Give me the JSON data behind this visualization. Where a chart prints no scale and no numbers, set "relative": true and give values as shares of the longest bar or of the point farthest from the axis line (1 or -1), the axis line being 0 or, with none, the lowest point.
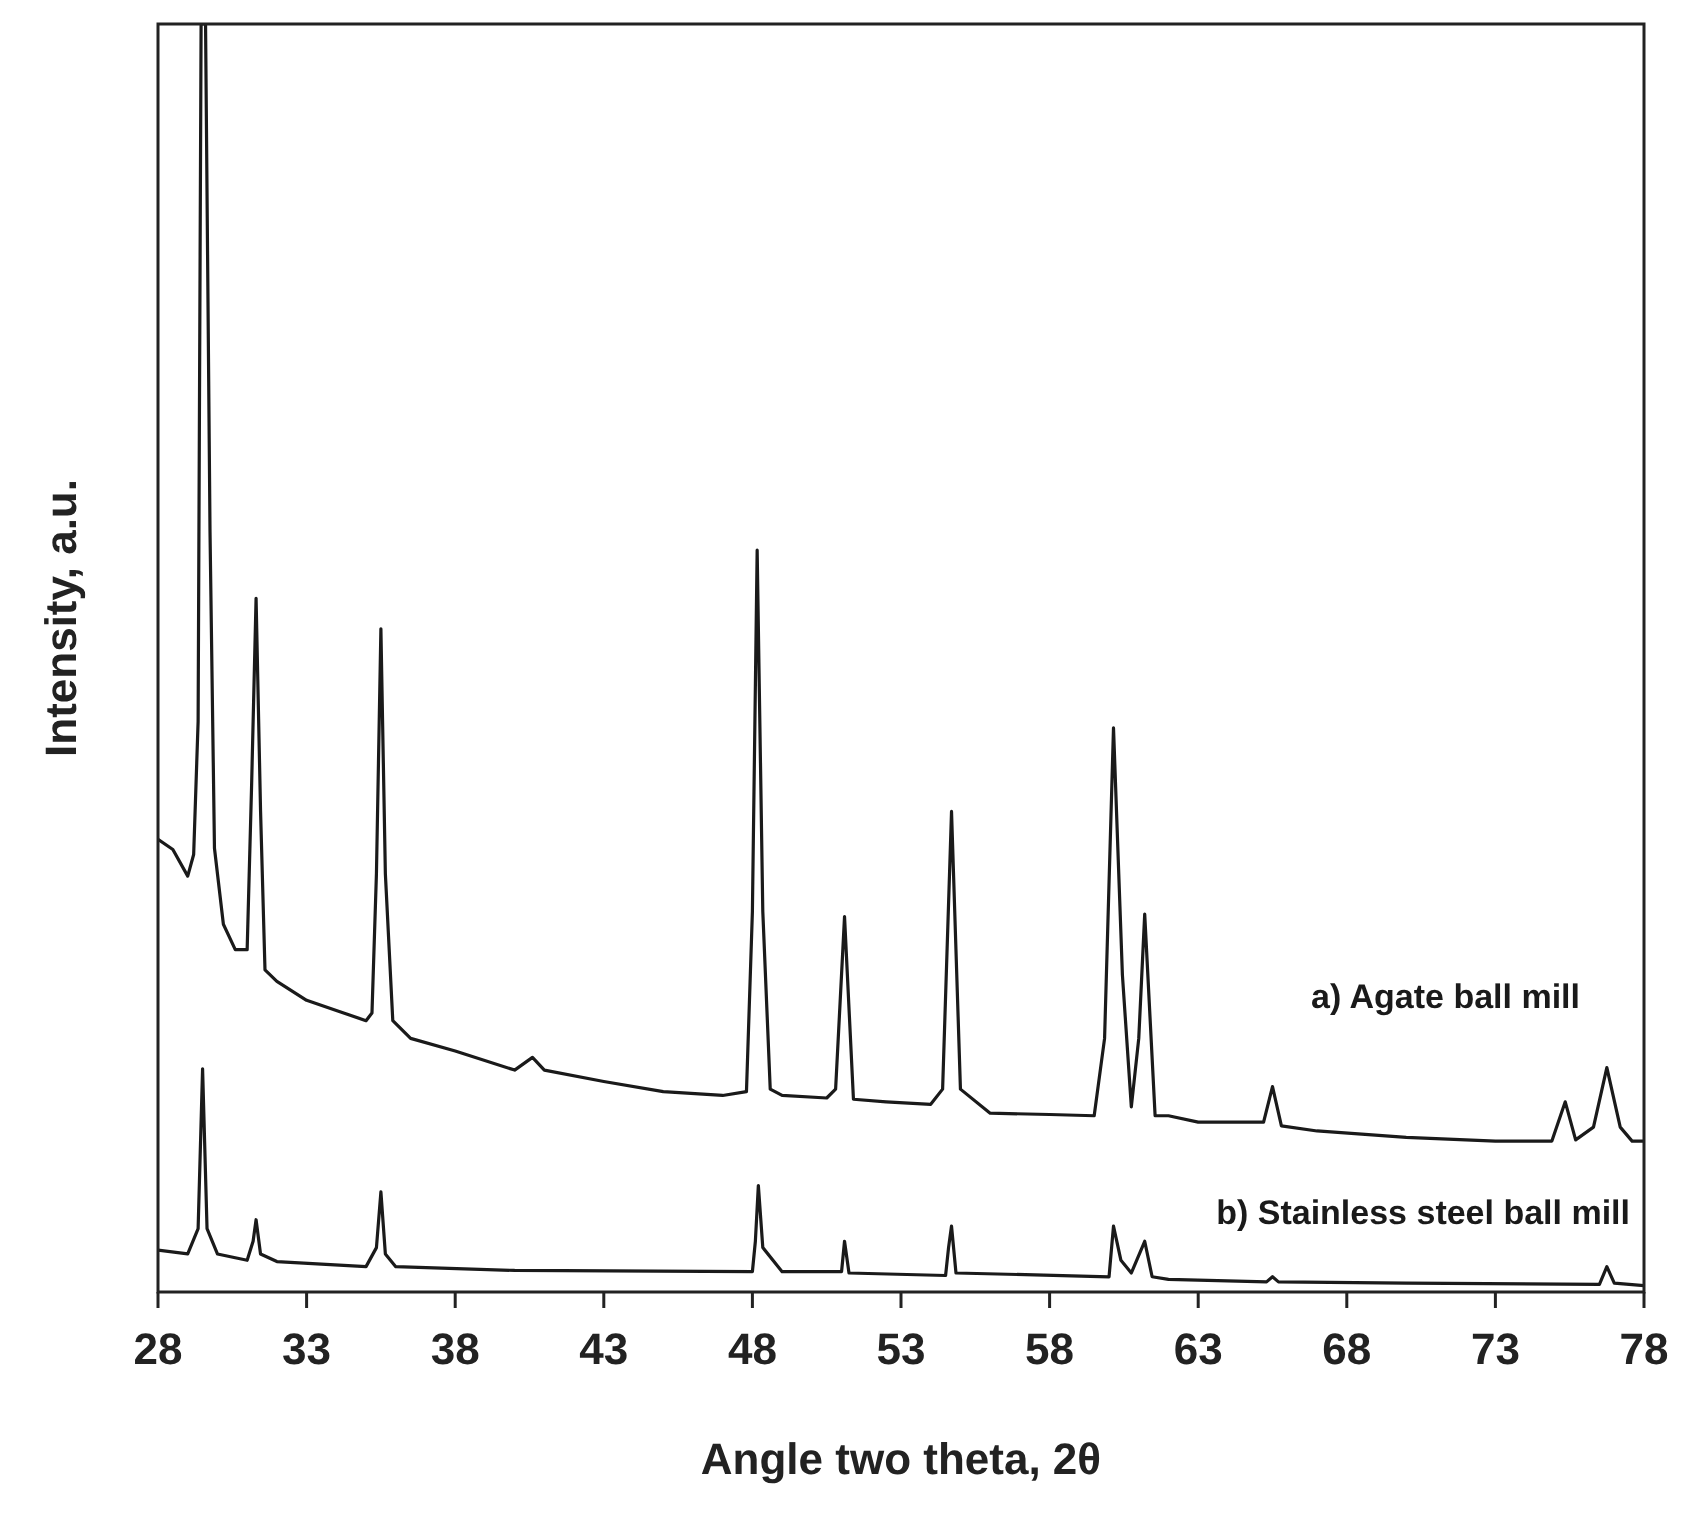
{
  "chart_data": {
    "type": "line",
    "xlabel": "Angle two theta, 2θ",
    "ylabel": "Intensity, a.u.",
    "relative": true,
    "xlim": [
      28,
      78
    ],
    "xticks": [
      28,
      33,
      38,
      43,
      48,
      53,
      58,
      63,
      68,
      73,
      78
    ],
    "grid": false,
    "line_style": "solid",
    "series": [
      {
        "name": "a) Agate ball mill",
        "color": "#1a1a1a",
        "x": [
          28,
          28.5,
          29,
          29.2,
          29.35,
          29.45,
          29.6,
          29.75,
          29.9,
          30.2,
          30.6,
          31.0,
          31.15,
          31.3,
          31.45,
          31.6,
          32,
          33,
          34,
          35,
          35.2,
          35.35,
          35.5,
          35.65,
          35.9,
          36.5,
          38,
          40,
          40.6,
          41,
          43,
          45,
          47,
          47.8,
          48.0,
          48.16,
          48.35,
          48.6,
          49,
          50.5,
          50.8,
          51.1,
          51.4,
          52.5,
          54,
          54.4,
          54.7,
          55.0,
          56,
          58,
          59.5,
          59.85,
          60.15,
          60.45,
          60.75,
          61.0,
          61.2,
          61.55,
          62,
          63,
          65.2,
          65.5,
          65.8,
          67,
          70,
          73,
          74.9,
          75.35,
          75.7,
          76.3,
          76.75,
          77.2,
          77.6,
          78
        ],
        "values": [
          0.357,
          0.349,
          0.328,
          0.345,
          0.45,
          1,
          1,
          0.6,
          0.35,
          0.29,
          0.27,
          0.27,
          0.4,
          0.547,
          0.38,
          0.254,
          0.245,
          0.23,
          0.222,
          0.214,
          0.22,
          0.33,
          0.523,
          0.33,
          0.214,
          0.2,
          0.19,
          0.175,
          0.185,
          0.175,
          0.166,
          0.158,
          0.155,
          0.158,
          0.3,
          0.585,
          0.3,
          0.16,
          0.155,
          0.153,
          0.16,
          0.296,
          0.152,
          0.15,
          0.148,
          0.16,
          0.379,
          0.16,
          0.141,
          0.14,
          0.139,
          0.2,
          0.445,
          0.25,
          0.146,
          0.2,
          0.298,
          0.139,
          0.139,
          0.134,
          0.134,
          0.162,
          0.131,
          0.127,
          0.122,
          0.119,
          0.119,
          0.15,
          0.12,
          0.13,
          0.177,
          0.13,
          0.119,
          0.119
        ]
      },
      {
        "name": "b) Stainless steel ball mill",
        "color": "#1a1a1a",
        "x": [
          28,
          29,
          29.35,
          29.5,
          29.65,
          30,
          31,
          31.2,
          31.3,
          31.45,
          32,
          35,
          35.35,
          35.5,
          35.65,
          36,
          40,
          48,
          48.1,
          48.2,
          48.35,
          49,
          51,
          51.1,
          51.25,
          54.5,
          54.6,
          54.7,
          54.85,
          60,
          60.15,
          60.4,
          60.75,
          61.2,
          61.45,
          62,
          65.3,
          65.5,
          65.7,
          70,
          76.5,
          76.75,
          77,
          78
        ],
        "values": [
          0.033,
          0.03,
          0.05,
          0.176,
          0.05,
          0.03,
          0.025,
          0.04,
          0.057,
          0.03,
          0.024,
          0.02,
          0.035,
          0.079,
          0.03,
          0.02,
          0.017,
          0.016,
          0.04,
          0.084,
          0.035,
          0.016,
          0.016,
          0.04,
          0.015,
          0.013,
          0.035,
          0.052,
          0.015,
          0.012,
          0.052,
          0.025,
          0.015,
          0.04,
          0.012,
          0.01,
          0.008,
          0.012,
          0.008,
          0.007,
          0.006,
          0.02,
          0.007,
          0.005
        ]
      }
    ]
  }
}
